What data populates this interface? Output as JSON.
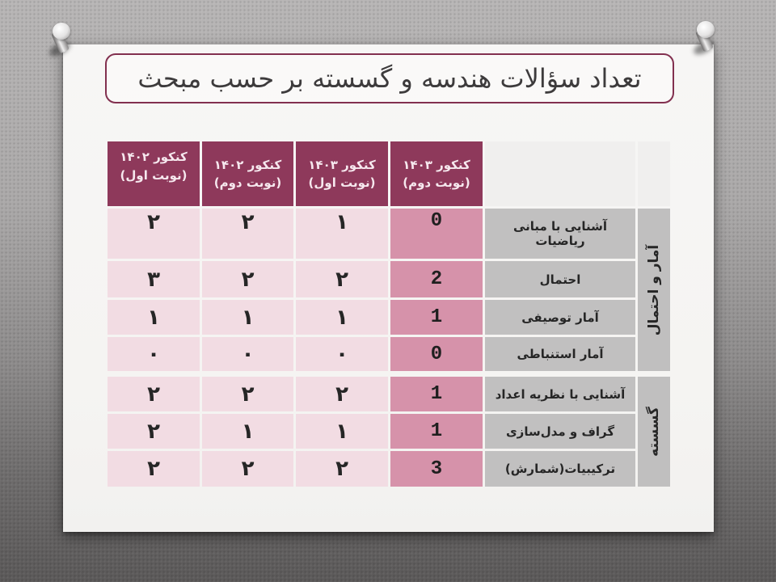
{
  "slide": {
    "title": "تعداد سؤالات هندسه و گسسته بر حسب مبحث"
  },
  "table": {
    "year_headers": [
      {
        "line1": "کنکور ۱۴۰۲",
        "line2": "(نوبت اول)"
      },
      {
        "line1": "کنکور ۱۴۰۲",
        "line2": "(نوبت دوم)"
      },
      {
        "line1": "کنکور ۱۴۰۳",
        "line2": "(نوبت اول)"
      },
      {
        "line1": "کنکور ۱۴۰۳",
        "line2": "(نوبت دوم)"
      }
    ],
    "groups": [
      {
        "category": "آمار و احتمال",
        "rows": [
          {
            "topic": "آشنایی با مبانی ریاضیات",
            "values": [
              "۲",
              "۲",
              "۱",
              "0"
            ]
          },
          {
            "topic": "احتمال",
            "values": [
              "۳",
              "۲",
              "۲",
              "2"
            ]
          },
          {
            "topic": "آمار توصیفی",
            "values": [
              "۱",
              "۱",
              "۱",
              "1"
            ]
          },
          {
            "topic": "آمار استنباطی",
            "values": [
              "۰",
              "۰",
              "۰",
              "0"
            ]
          }
        ]
      },
      {
        "category": "گسسته",
        "rows": [
          {
            "topic": "آشنایی با نظریه اعداد",
            "values": [
              "۲",
              "۲",
              "۲",
              "1"
            ]
          },
          {
            "topic": "گراف و مدل‌سازی",
            "values": [
              "۲",
              "۱",
              "۱",
              "1"
            ]
          },
          {
            "topic": "ترکیبیات(شمارش)",
            "values": [
              "۲",
              "۲",
              "۲",
              "3"
            ]
          }
        ]
      }
    ]
  },
  "colors": {
    "header_bg": "#8E395B",
    "header_text": "#F6E8EE",
    "highlight_column_bg": "#D692AA",
    "light_column_bg": "#F2DCE3",
    "topic_bg": "#C1C0C0",
    "title_border": "#82304F",
    "paper": "#F5F4F2"
  }
}
